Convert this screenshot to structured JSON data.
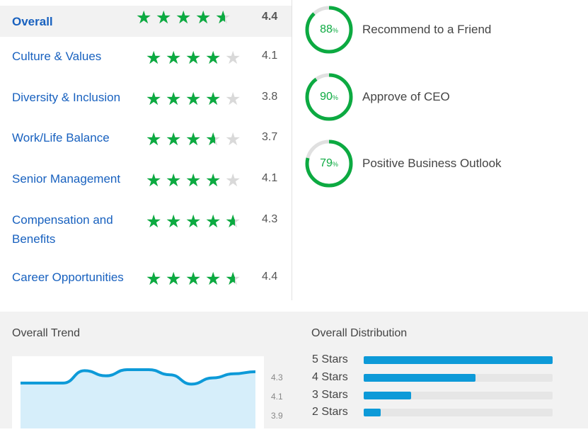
{
  "ratings": [
    {
      "label": "Overall",
      "value": "4.4",
      "score": 4.4
    },
    {
      "label": "Culture & Values",
      "value": "4.1",
      "score": 4.1
    },
    {
      "label": "Diversity & Inclusion",
      "value": "3.8",
      "score": 3.8
    },
    {
      "label": "Work/Life Balance",
      "value": "3.7",
      "score": 3.7
    },
    {
      "label": "Senior Management",
      "value": "4.1",
      "score": 4.1
    },
    {
      "label": "Compensation and Benefits",
      "value": "4.3",
      "score": 4.3
    },
    {
      "label": "Career Opportunities",
      "value": "4.4",
      "score": 4.4
    }
  ],
  "badges": [
    {
      "percent": "88",
      "label": "Recommend to a Friend",
      "fraction": 0.88
    },
    {
      "percent": "90",
      "label": "Approve of CEO",
      "fraction": 0.9
    },
    {
      "percent": "79",
      "label": "Positive Business Outlook",
      "fraction": 0.79
    }
  ],
  "percent_suffix": "%",
  "trend": {
    "title": "Overall Trend",
    "ticks": [
      "4.3",
      "4.1",
      "3.9"
    ],
    "values": [
      4.24,
      4.24,
      4.24,
      4.36,
      4.31,
      4.37,
      4.37,
      4.32,
      4.23,
      4.29,
      4.33,
      4.35
    ],
    "range": [
      3.8,
      4.5
    ]
  },
  "distribution": {
    "title": "Overall Distribution",
    "rows": [
      {
        "label": "5 Stars",
        "fraction": 1.0
      },
      {
        "label": "4 Stars",
        "fraction": 0.59
      },
      {
        "label": "3 Stars",
        "fraction": 0.25
      },
      {
        "label": "2 Stars",
        "fraction": 0.09
      }
    ]
  },
  "colors": {
    "star": "#0caa41",
    "star_empty": "#d9d9d9",
    "link": "#1861bf",
    "ring": "#0caa41",
    "ring_track": "#e0e0e0",
    "bar": "#0d9ad8",
    "trend_line": "#0d9ad8",
    "trend_fill": "#d6eefa"
  }
}
